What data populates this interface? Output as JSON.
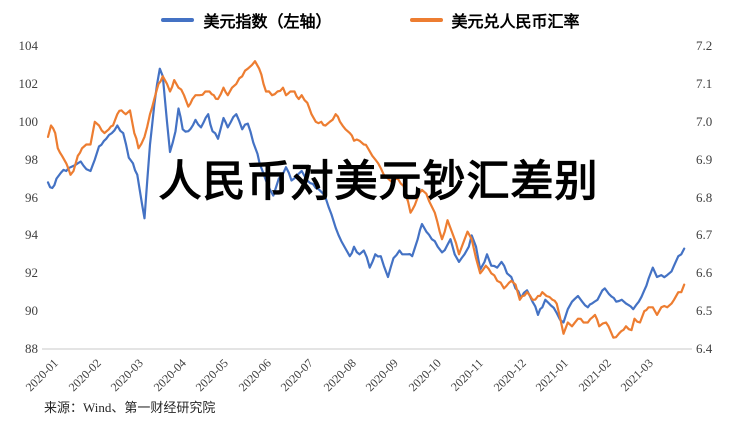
{
  "title_overlay": "人民币对美元钞汇差别",
  "source": "来源：Wind、第一财经研究院",
  "legend": [
    {
      "label": "美元指数（左轴）",
      "color": "#4472C4"
    },
    {
      "label": "美元兑人民币汇率",
      "color": "#ED7D31"
    }
  ],
  "colors": {
    "axis_line": "#c9c9c9",
    "tick_text": "#3f3f3f",
    "background": "#ffffff"
  },
  "chart_data": {
    "type": "line",
    "title": "人民币对美元钞汇差别",
    "x_unit": "months since 2020-01-01",
    "x_tick_labels": [
      "2020-01",
      "2020-02",
      "2020-03",
      "2020-04",
      "2020-05",
      "2020-06",
      "2020-07",
      "2020-08",
      "2020-09",
      "2020-10",
      "2020-11",
      "2020-12",
      "2021-01",
      "2021-02",
      "2021-03"
    ],
    "left_axis": {
      "min": 88,
      "max": 104,
      "ticks": [
        104,
        102,
        100,
        98,
        96,
        94,
        92,
        90,
        88
      ]
    },
    "right_axis": {
      "min": 6.4,
      "max": 7.2,
      "ticks": [
        "7.2",
        "7.1",
        "7.0",
        "6.9",
        "6.8",
        "6.7",
        "6.6",
        "6.5",
        "6.4"
      ]
    },
    "legend_position": "top-center",
    "grid": false,
    "series": [
      {
        "name": "美元指数（左轴）",
        "axis": "left",
        "color": "#4472C4",
        "points": [
          [
            0.0,
            96.8
          ],
          [
            0.1,
            96.5
          ],
          [
            0.2,
            97.0
          ],
          [
            0.3,
            97.3
          ],
          [
            0.43,
            97.4
          ],
          [
            0.53,
            97.6
          ],
          [
            0.63,
            97.7
          ],
          [
            0.77,
            97.9
          ],
          [
            0.9,
            97.5
          ],
          [
            1.0,
            97.4
          ],
          [
            1.1,
            98.0
          ],
          [
            1.2,
            98.7
          ],
          [
            1.37,
            99.1
          ],
          [
            1.5,
            99.4
          ],
          [
            1.63,
            99.8
          ],
          [
            1.77,
            99.4
          ],
          [
            1.9,
            98.1
          ],
          [
            2.0,
            97.8
          ],
          [
            2.1,
            97.2
          ],
          [
            2.27,
            94.9
          ],
          [
            2.4,
            98.8
          ],
          [
            2.5,
            100.9
          ],
          [
            2.63,
            102.8
          ],
          [
            2.7,
            102.4
          ],
          [
            2.8,
            100.0
          ],
          [
            2.87,
            98.4
          ],
          [
            3.0,
            99.5
          ],
          [
            3.07,
            100.7
          ],
          [
            3.17,
            99.6
          ],
          [
            3.3,
            99.5
          ],
          [
            3.47,
            100.1
          ],
          [
            3.6,
            99.7
          ],
          [
            3.77,
            100.4
          ],
          [
            3.87,
            99.5
          ],
          [
            4.0,
            99.1
          ],
          [
            4.13,
            100.2
          ],
          [
            4.23,
            99.7
          ],
          [
            4.43,
            100.4
          ],
          [
            4.57,
            99.6
          ],
          [
            4.7,
            99.9
          ],
          [
            4.83,
            98.9
          ],
          [
            4.93,
            98.3
          ],
          [
            5.03,
            97.5
          ],
          [
            5.13,
            96.9
          ],
          [
            5.3,
            96.1
          ],
          [
            5.43,
            97.0
          ],
          [
            5.6,
            97.6
          ],
          [
            5.73,
            96.9
          ],
          [
            5.87,
            97.2
          ],
          [
            5.97,
            97.4
          ],
          [
            6.1,
            96.9
          ],
          [
            6.3,
            96.5
          ],
          [
            6.43,
            96.3
          ],
          [
            6.53,
            96.0
          ],
          [
            6.67,
            95.1
          ],
          [
            6.77,
            94.4
          ],
          [
            6.9,
            93.7
          ],
          [
            7.0,
            93.3
          ],
          [
            7.1,
            92.9
          ],
          [
            7.2,
            93.4
          ],
          [
            7.33,
            93.0
          ],
          [
            7.43,
            93.2
          ],
          [
            7.57,
            92.3
          ],
          [
            7.7,
            93.0
          ],
          [
            7.83,
            92.9
          ],
          [
            7.9,
            92.4
          ],
          [
            8.0,
            91.8
          ],
          [
            8.13,
            92.8
          ],
          [
            8.27,
            93.2
          ],
          [
            8.4,
            93.0
          ],
          [
            8.57,
            92.9
          ],
          [
            8.7,
            93.8
          ],
          [
            8.8,
            94.6
          ],
          [
            8.9,
            94.2
          ],
          [
            9.03,
            93.8
          ],
          [
            9.17,
            93.4
          ],
          [
            9.27,
            93.1
          ],
          [
            9.4,
            93.5
          ],
          [
            9.47,
            93.8
          ],
          [
            9.57,
            93.0
          ],
          [
            9.67,
            92.6
          ],
          [
            9.8,
            93.0
          ],
          [
            9.9,
            93.4
          ],
          [
            9.97,
            94.0
          ],
          [
            10.07,
            93.4
          ],
          [
            10.17,
            92.2
          ],
          [
            10.27,
            92.6
          ],
          [
            10.33,
            93.0
          ],
          [
            10.43,
            92.4
          ],
          [
            10.57,
            92.3
          ],
          [
            10.67,
            92.6
          ],
          [
            10.8,
            92.0
          ],
          [
            10.9,
            91.8
          ],
          [
            11.0,
            91.2
          ],
          [
            11.13,
            90.7
          ],
          [
            11.27,
            91.1
          ],
          [
            11.4,
            90.5
          ],
          [
            11.53,
            89.8
          ],
          [
            11.63,
            90.2
          ],
          [
            11.7,
            90.6
          ],
          [
            11.83,
            90.3
          ],
          [
            11.97,
            89.9
          ],
          [
            12.13,
            89.4
          ],
          [
            12.23,
            90.1
          ],
          [
            12.33,
            90.5
          ],
          [
            12.47,
            90.8
          ],
          [
            12.57,
            90.5
          ],
          [
            12.7,
            90.2
          ],
          [
            12.8,
            90.4
          ],
          [
            12.93,
            90.6
          ],
          [
            13.1,
            91.2
          ],
          [
            13.2,
            90.9
          ],
          [
            13.37,
            90.5
          ],
          [
            13.5,
            90.6
          ],
          [
            13.6,
            90.4
          ],
          [
            13.77,
            90.1
          ],
          [
            13.9,
            90.5
          ],
          [
            14.03,
            91.1
          ],
          [
            14.13,
            91.7
          ],
          [
            14.23,
            92.3
          ],
          [
            14.33,
            91.8
          ],
          [
            14.43,
            91.9
          ],
          [
            14.57,
            91.9
          ],
          [
            14.67,
            92.1
          ],
          [
            14.73,
            92.4
          ],
          [
            14.83,
            92.9
          ],
          [
            14.9,
            93.0
          ],
          [
            14.97,
            93.3
          ]
        ]
      },
      {
        "name": "美元兑人民币汇率",
        "axis": "right",
        "color": "#ED7D31",
        "points": [
          [
            0.0,
            6.96
          ],
          [
            0.07,
            6.99
          ],
          [
            0.17,
            6.97
          ],
          [
            0.23,
            6.93
          ],
          [
            0.33,
            6.91
          ],
          [
            0.43,
            6.89
          ],
          [
            0.53,
            6.86
          ],
          [
            0.6,
            6.87
          ],
          [
            0.7,
            6.91
          ],
          [
            0.8,
            6.93
          ],
          [
            0.9,
            6.94
          ],
          [
            1.0,
            6.94
          ],
          [
            1.1,
            7.0
          ],
          [
            1.2,
            6.99
          ],
          [
            1.33,
            6.97
          ],
          [
            1.43,
            6.98
          ],
          [
            1.53,
            6.99
          ],
          [
            1.63,
            7.02
          ],
          [
            1.73,
            7.03
          ],
          [
            1.83,
            7.02
          ],
          [
            1.93,
            7.03
          ],
          [
            2.03,
            6.97
          ],
          [
            2.13,
            6.93
          ],
          [
            2.27,
            6.96
          ],
          [
            2.4,
            7.02
          ],
          [
            2.5,
            7.06
          ],
          [
            2.6,
            7.1
          ],
          [
            2.7,
            7.12
          ],
          [
            2.8,
            7.1
          ],
          [
            2.87,
            7.08
          ],
          [
            2.97,
            7.11
          ],
          [
            3.07,
            7.09
          ],
          [
            3.2,
            7.07
          ],
          [
            3.3,
            7.04
          ],
          [
            3.4,
            7.06
          ],
          [
            3.47,
            7.07
          ],
          [
            3.57,
            7.07
          ],
          [
            3.7,
            7.08
          ],
          [
            3.8,
            7.08
          ],
          [
            3.9,
            7.07
          ],
          [
            4.0,
            7.06
          ],
          [
            4.13,
            7.09
          ],
          [
            4.23,
            7.07
          ],
          [
            4.33,
            7.09
          ],
          [
            4.43,
            7.1
          ],
          [
            4.57,
            7.12
          ],
          [
            4.7,
            7.14
          ],
          [
            4.8,
            7.15
          ],
          [
            4.87,
            7.16
          ],
          [
            4.97,
            7.14
          ],
          [
            5.07,
            7.1
          ],
          [
            5.13,
            7.08
          ],
          [
            5.27,
            7.07
          ],
          [
            5.4,
            7.08
          ],
          [
            5.53,
            7.09
          ],
          [
            5.6,
            7.07
          ],
          [
            5.7,
            7.08
          ],
          [
            5.8,
            7.08
          ],
          [
            5.9,
            7.06
          ],
          [
            5.97,
            7.07
          ],
          [
            6.1,
            7.05
          ],
          [
            6.2,
            7.02
          ],
          [
            6.3,
            7.0
          ],
          [
            6.43,
            7.0
          ],
          [
            6.53,
            6.99
          ],
          [
            6.63,
            7.0
          ],
          [
            6.77,
            7.02
          ],
          [
            6.87,
            7.0
          ],
          [
            7.0,
            6.98
          ],
          [
            7.1,
            6.97
          ],
          [
            7.2,
            6.95
          ],
          [
            7.33,
            6.95
          ],
          [
            7.43,
            6.94
          ],
          [
            7.53,
            6.93
          ],
          [
            7.63,
            6.91
          ],
          [
            7.77,
            6.89
          ],
          [
            7.9,
            6.86
          ],
          [
            8.0,
            6.85
          ],
          [
            8.1,
            6.84
          ],
          [
            8.23,
            6.85
          ],
          [
            8.37,
            6.83
          ],
          [
            8.47,
            6.79
          ],
          [
            8.53,
            6.76
          ],
          [
            8.63,
            6.78
          ],
          [
            8.73,
            6.81
          ],
          [
            8.8,
            6.82
          ],
          [
            8.9,
            6.81
          ],
          [
            8.97,
            6.79
          ],
          [
            9.1,
            6.76
          ],
          [
            9.27,
            6.69
          ],
          [
            9.4,
            6.74
          ],
          [
            9.5,
            6.71
          ],
          [
            9.6,
            6.68
          ],
          [
            9.67,
            6.65
          ],
          [
            9.77,
            6.68
          ],
          [
            9.87,
            6.71
          ],
          [
            9.97,
            6.69
          ],
          [
            10.07,
            6.64
          ],
          [
            10.17,
            6.6
          ],
          [
            10.3,
            6.62
          ],
          [
            10.43,
            6.6
          ],
          [
            10.57,
            6.58
          ],
          [
            10.73,
            6.56
          ],
          [
            10.9,
            6.58
          ],
          [
            11.0,
            6.57
          ],
          [
            11.1,
            6.53
          ],
          [
            11.27,
            6.55
          ],
          [
            11.4,
            6.53
          ],
          [
            11.53,
            6.54
          ],
          [
            11.63,
            6.55
          ],
          [
            11.73,
            6.54
          ],
          [
            11.87,
            6.53
          ],
          [
            11.97,
            6.52
          ],
          [
            12.13,
            6.44
          ],
          [
            12.23,
            6.47
          ],
          [
            12.33,
            6.46
          ],
          [
            12.47,
            6.48
          ],
          [
            12.6,
            6.47
          ],
          [
            12.7,
            6.47
          ],
          [
            12.87,
            6.49
          ],
          [
            12.97,
            6.46
          ],
          [
            13.13,
            6.47
          ],
          [
            13.3,
            6.43
          ],
          [
            13.43,
            6.44
          ],
          [
            13.6,
            6.46
          ],
          [
            13.73,
            6.45
          ],
          [
            13.8,
            6.48
          ],
          [
            13.93,
            6.47
          ],
          [
            14.03,
            6.5
          ],
          [
            14.13,
            6.51
          ],
          [
            14.23,
            6.51
          ],
          [
            14.33,
            6.49
          ],
          [
            14.43,
            6.51
          ],
          [
            14.57,
            6.51
          ],
          [
            14.67,
            6.52
          ],
          [
            14.73,
            6.53
          ],
          [
            14.83,
            6.55
          ],
          [
            14.9,
            6.55
          ],
          [
            14.97,
            6.57
          ]
        ]
      }
    ]
  }
}
